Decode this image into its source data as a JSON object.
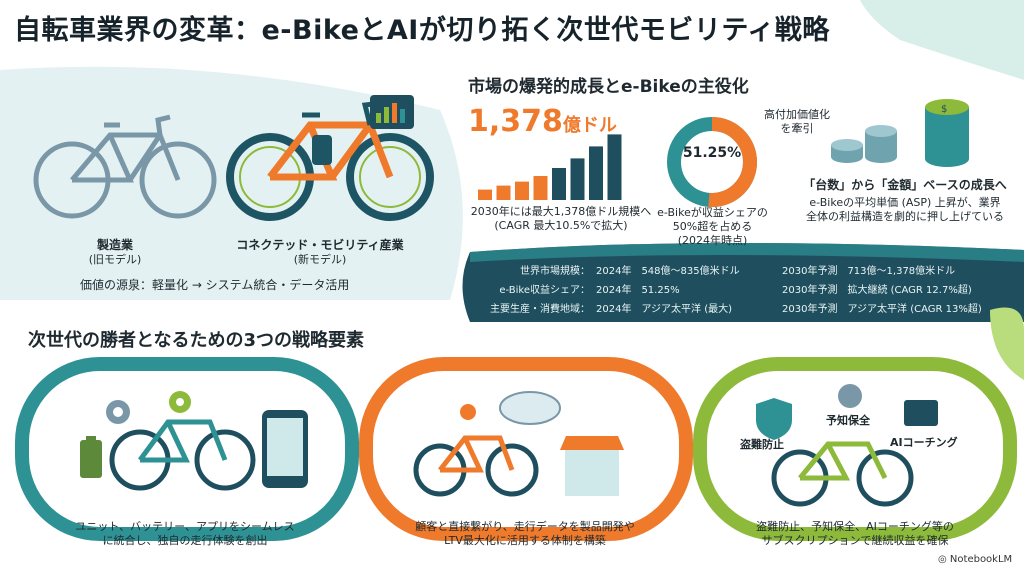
{
  "title": "自転車業界の変革：e-BikeとAIが切り拓く次世代モビリティ戦略",
  "left_panel": {
    "old_label": "製造業",
    "old_sub": "(旧モデル)",
    "new_label": "コネクテッド・モビリティ産業",
    "new_sub": "(新モデル)",
    "value_source": "価値の源泉：軽量化 → システム統合・データ活用"
  },
  "market": {
    "heading": "市場の爆発的成長とe-Bikeの主役化",
    "big_number": "1,378",
    "big_unit": "億ドル",
    "bar_caption": [
      "2030年には最大1,378億ドル規模へ",
      "(CAGR 最大10.5%で拡大)"
    ],
    "bar_fractions": [
      0.13,
      0.18,
      0.23,
      0.3,
      0.4,
      0.52,
      0.67,
      0.82
    ],
    "donut_value": "51.25%",
    "donut_fraction": 0.5125,
    "donut_note": [
      "高付加価値化",
      "を牽引"
    ],
    "donut_caption": [
      "e-Bikeが収益シェアの",
      "50%超を占める",
      "(2024年時点)"
    ],
    "asp_title": "「台数」から「金額」ベースの成長へ",
    "asp_caption": [
      "e-Bikeの平均単価 (ASP) 上昇が、業界",
      "全体の利益構造を劇的に押し上げている"
    ]
  },
  "stats_table": [
    {
      "label": "世界市場規模：",
      "y2024": "2024年　548億〜835億米ドル",
      "y2030": "2030年予測　713億〜1,378億米ドル"
    },
    {
      "label": "e-Bike収益シェア：",
      "y2024": "2024年　51.25%",
      "y2030": "2030年予測　拡大継続 (CAGR 12.7%超)"
    },
    {
      "label": "主要生産・消費地域：",
      "y2024": "2024年　アジア太平洋 (最大)",
      "y2030": "2030年予測　アジア太平洋 (CAGR 13%超)"
    }
  ],
  "strategy": {
    "heading": "次世代の勝者となるための3つの戦略要素",
    "items": [
      {
        "caption": [
          "ユニット、バッテリー、アプリをシームレス",
          "に統合し、独自の走行体験を創出"
        ]
      },
      {
        "caption": [
          "顧客と直接繋がり、走行データを製品開発や",
          "LTV最大化に活用する体制を構築"
        ]
      },
      {
        "caption": [
          "盗難防止、予知保全、AIコーチング等の",
          "サブスクリプションで継続収益を確保"
        ]
      }
    ],
    "labels3": {
      "theft": "盗難防止",
      "maint": "予知保全",
      "coach": "AIコーチング"
    }
  },
  "brand": "NotebookLM",
  "colors": {
    "teal": "#2e9294",
    "orange": "#ef7a2b",
    "green": "#8dba3a",
    "navy": "#1f4f5f"
  }
}
